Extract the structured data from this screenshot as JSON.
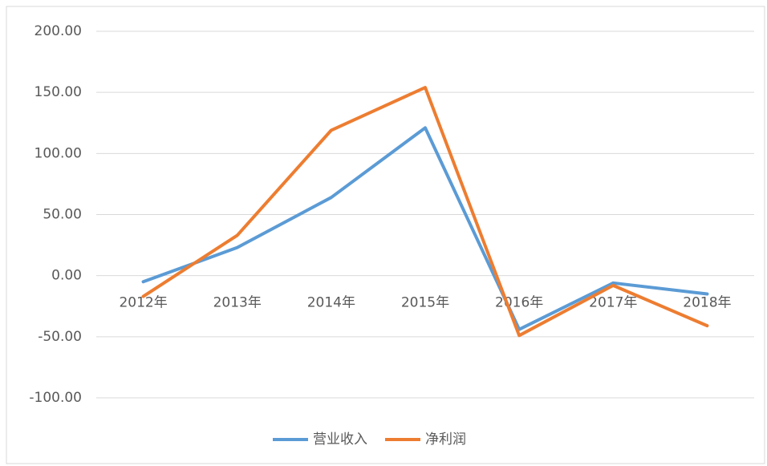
{
  "chart_data": {
    "type": "line",
    "categories": [
      "2012年",
      "2013年",
      "2014年",
      "2015年",
      "2016年",
      "2017年",
      "2018年"
    ],
    "series": [
      {
        "name": "营业收入",
        "color": "#5b9bd5",
        "values": [
          -5,
          23,
          64,
          121,
          -44,
          -6,
          -15
        ]
      },
      {
        "name": "净利润",
        "color": "#ed7d31",
        "values": [
          -17,
          33,
          119,
          154,
          -49,
          -8,
          -41
        ]
      }
    ],
    "ylim": [
      -100,
      200
    ],
    "yticks": [
      {
        "value": -100,
        "label": "-100.00"
      },
      {
        "value": -50,
        "label": "-50.00"
      },
      {
        "value": 0,
        "label": "0.00"
      },
      {
        "value": 50,
        "label": "50.00"
      },
      {
        "value": 100,
        "label": "100.00"
      },
      {
        "value": 150,
        "label": "150.00"
      },
      {
        "value": 200,
        "label": "200.00"
      }
    ],
    "grid": true,
    "legend": "bottom"
  }
}
